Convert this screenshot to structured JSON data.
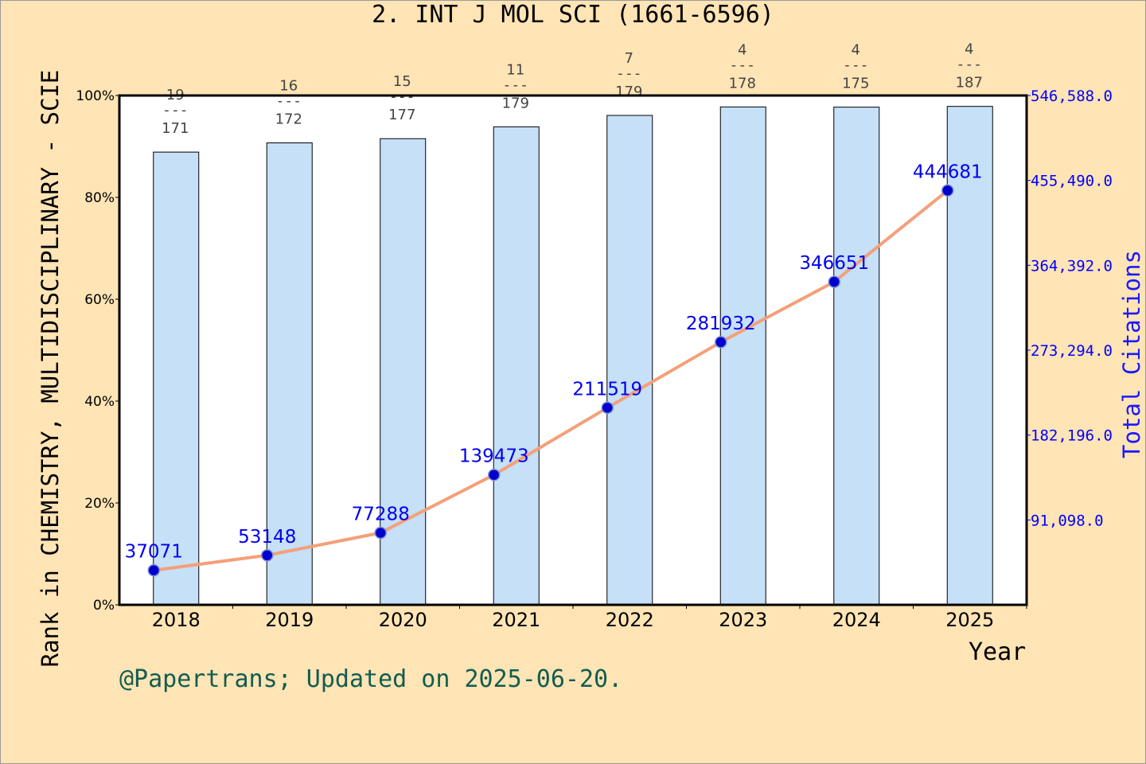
{
  "chart_data": {
    "type": "bar+line",
    "title": "2. INT J MOL SCI (1661-6596)",
    "xlabel": "Year",
    "ylabel": "Rank in CHEMISTRY, MULTIDISCIPLINARY - SCIE",
    "y2label": "Total Citations",
    "categories": [
      "2018",
      "2019",
      "2020",
      "2021",
      "2022",
      "2023",
      "2024",
      "2025"
    ],
    "ranks": [
      19,
      16,
      15,
      11,
      7,
      4,
      4,
      4
    ],
    "totals": [
      171,
      172,
      177,
      179,
      179,
      178,
      175,
      187
    ],
    "bar_percentile": [
      88.9,
      90.7,
      91.5,
      93.9,
      96.1,
      97.8,
      97.7,
      97.9
    ],
    "citations": [
      37071,
      53148,
      77288,
      139473,
      211519,
      281932,
      346651,
      444681
    ],
    "ylim": [
      0,
      100
    ],
    "yticks": [
      "0%",
      "20%",
      "40%",
      "60%",
      "80%",
      "100%"
    ],
    "y2lim": [
      0,
      546588
    ],
    "y2ticks": [
      "91,098.0",
      "182,196.0",
      "273,294.0",
      "364,392.0",
      "455,490.0",
      "546,588.0"
    ],
    "colors": {
      "bar": "#c6e0f7",
      "line": "#f4a07a",
      "point": "#0000cc",
      "label": "#0000ee",
      "axis2": "#0000ff",
      "background": "#ffe4b5"
    },
    "grid": false
  },
  "footer": "@Papertrans; Updated on 2025-06-20."
}
